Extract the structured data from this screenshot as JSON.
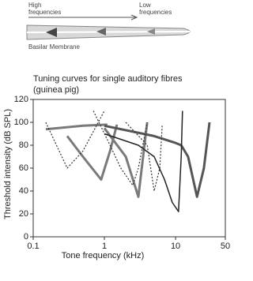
{
  "diagram": {
    "high": [
      "High",
      "frequencies"
    ],
    "low": [
      "Low",
      "frequencies"
    ],
    "membrane": "Basilar Membrane"
  },
  "chart_data": {
    "type": "line",
    "title": [
      "Tuning curves for single auditory fibres",
      "(guinea pig)"
    ],
    "x_label": "Tone frequency (kHz)",
    "y_label": "Threshold intensity (dB SPL)",
    "xlim": [
      0.1,
      50
    ],
    "xticks": [
      0.1,
      1,
      10,
      50
    ],
    "x_log": true,
    "ylim": [
      0,
      120
    ],
    "yticks": [
      0,
      20,
      40,
      60,
      80,
      100,
      120
    ],
    "series": [
      {
        "color": "#7a7a7a",
        "dash": false,
        "x": [
          0.15,
          0.5,
          1.1
        ],
        "values": [
          94,
          97,
          98
        ]
      },
      {
        "color": "#7a7a7a",
        "dash": false,
        "x": [
          0.3,
          0.5,
          0.9,
          1.2,
          1.5
        ],
        "values": [
          88,
          70,
          50,
          75,
          98
        ]
      },
      {
        "color": "#7a7a7a",
        "dash": false,
        "x": [
          1,
          2,
          3,
          3.5,
          4
        ],
        "values": [
          95,
          70,
          35,
          70,
          100
        ]
      },
      {
        "color": "#555555",
        "dash": false,
        "x": [
          1,
          5,
          10,
          12,
          15,
          20,
          25,
          30
        ],
        "values": [
          97,
          88,
          82,
          80,
          70,
          35,
          60,
          100
        ]
      },
      {
        "color": "#222222",
        "dash": false,
        "x": [
          1,
          3,
          5,
          7,
          9,
          11,
          12,
          12.5
        ],
        "values": [
          90,
          80,
          70,
          50,
          30,
          22,
          70,
          110
        ]
      },
      {
        "color": "#333333",
        "dash": true,
        "x": [
          0.15,
          0.3,
          0.5,
          1
        ],
        "values": [
          100,
          60,
          75,
          110
        ]
      },
      {
        "color": "#333333",
        "dash": true,
        "x": [
          0.7,
          1.2,
          1.7,
          2.5,
          3,
          4
        ],
        "values": [
          110,
          80,
          60,
          45,
          60,
          100
        ]
      },
      {
        "color": "#333333",
        "dash": true,
        "x": [
          2,
          4,
          5,
          6,
          6.5
        ],
        "values": [
          100,
          80,
          40,
          60,
          98
        ]
      }
    ]
  }
}
